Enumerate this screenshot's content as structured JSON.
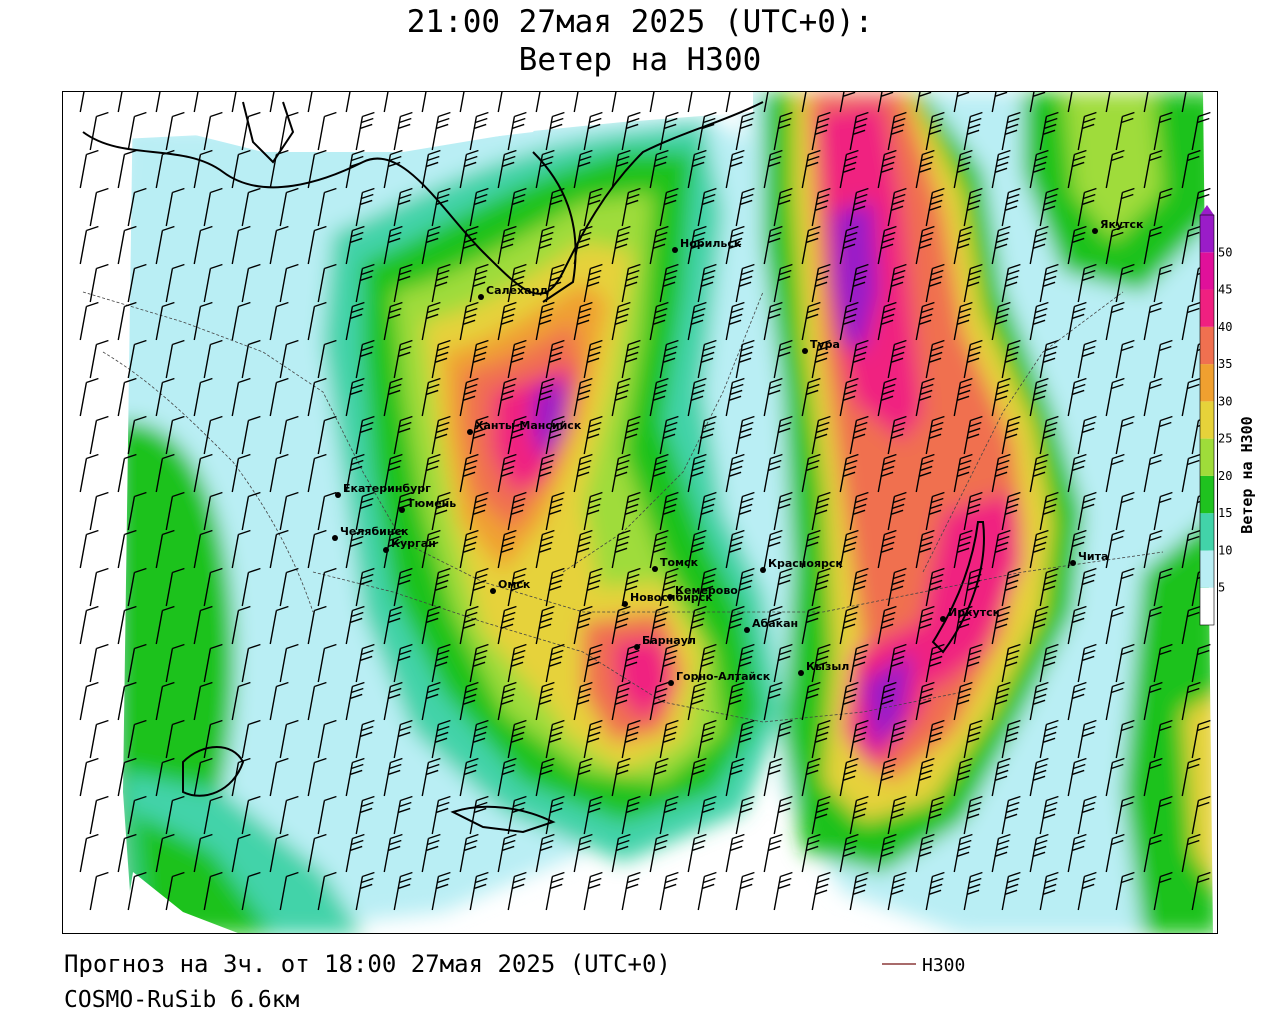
{
  "title": {
    "line1": "21:00 27мая 2025 (UTC+0):",
    "line2": "Ветер на Н300"
  },
  "footer": {
    "forecast": "Прогноз на 3ч. от 18:00 27мая 2025 (UTC+0)",
    "model": "COSMO-RuSib 6.6км"
  },
  "legend": {
    "line_label": "Н300",
    "line_color": "#8b3a3a"
  },
  "colorbar": {
    "label": "Ветер на Н300",
    "ticks": [
      "5",
      "10",
      "15",
      "20",
      "25",
      "30",
      "35",
      "40",
      "45",
      "50"
    ],
    "colors": [
      "#ffffff",
      "#b9eef4",
      "#42d3a9",
      "#1fc21f",
      "#9fdc3a",
      "#e6d23a",
      "#f0a030",
      "#f07050",
      "#f02080",
      "#e0109a",
      "#9a1cc8"
    ]
  },
  "cities": [
    {
      "name": "Якутск"
    },
    {
      "name": "Норильск"
    },
    {
      "name": "Салехард"
    },
    {
      "name": "Тура"
    },
    {
      "name": "Ханты-Мансийск"
    },
    {
      "name": "Екатеринбург"
    },
    {
      "name": "Тюмень"
    },
    {
      "name": "Челябинск"
    },
    {
      "name": "Курган"
    },
    {
      "name": "Омск"
    },
    {
      "name": "Новосибирск"
    },
    {
      "name": "Томск"
    },
    {
      "name": "Кемерово"
    },
    {
      "name": "Красноярск"
    },
    {
      "name": "Абакан"
    },
    {
      "name": "Барнаул"
    },
    {
      "name": "Горно-Алтайск"
    },
    {
      "name": "Кызыл"
    },
    {
      "name": "Иркутск"
    },
    {
      "name": "Чита"
    }
  ]
}
